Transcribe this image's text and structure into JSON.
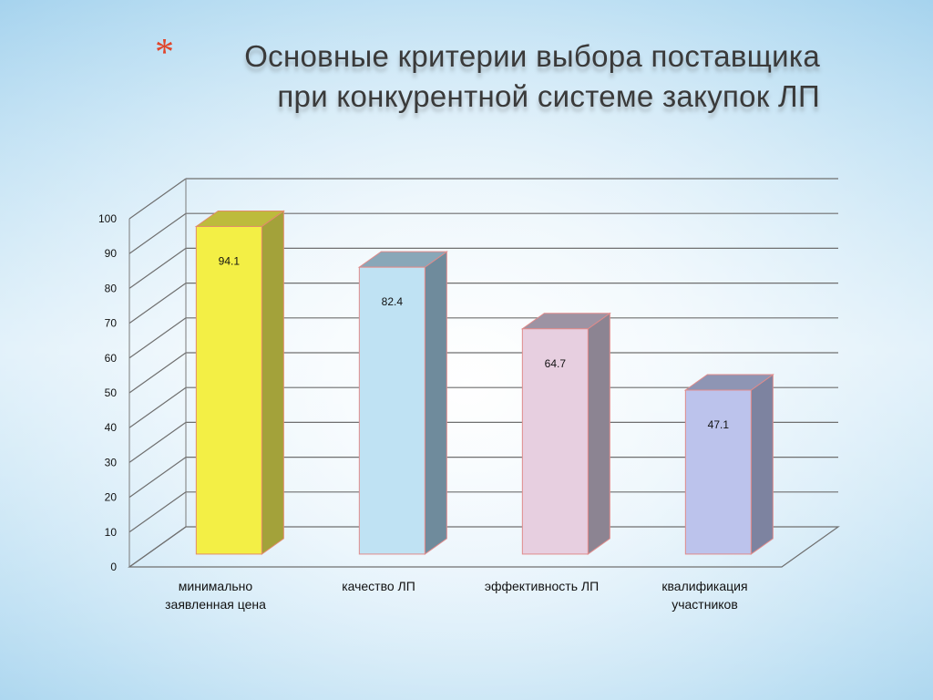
{
  "slide": {
    "bullet": "*",
    "title_line1": "Основные критерии выбора поставщика",
    "title_line2": "при конкурентной системе закупок ЛП"
  },
  "chart_data": {
    "type": "bar",
    "categories": [
      [
        "минимально",
        "заявленная цена"
      ],
      [
        "качество ЛП"
      ],
      [
        "эффективность ЛП"
      ],
      [
        "квалификация",
        "участников"
      ]
    ],
    "values": [
      94.1,
      82.4,
      64.7,
      47.1
    ],
    "data_labels": [
      "94.1",
      "82.4",
      "64.7",
      "47.1"
    ],
    "ylim": [
      0,
      100
    ],
    "yticks": [
      0,
      10,
      20,
      30,
      40,
      50,
      60,
      70,
      80,
      90,
      100
    ],
    "grid": true,
    "style": "3d-column",
    "colors": [
      {
        "front": "#f3ef45",
        "side": "#a3a23a",
        "top": "#bdbb3c",
        "edge": "#e28c6a"
      },
      {
        "front": "#bfe2f3",
        "side": "#6f8b9c",
        "top": "#89a7b8",
        "edge": "#e08b8b"
      },
      {
        "front": "#e7cfe0",
        "side": "#8c8492",
        "top": "#9d93a3",
        "edge": "#e08b8b"
      },
      {
        "front": "#bcc3ec",
        "side": "#7d83a0",
        "top": "#8e95b4",
        "edge": "#e08b8b"
      }
    ]
  }
}
